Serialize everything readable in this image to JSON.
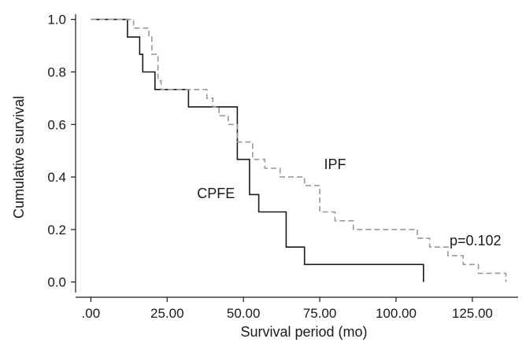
{
  "chart_data": {
    "type": "line",
    "subtype": "kaplan-meier step curves",
    "title": "",
    "xlabel": "Survival period (mo)",
    "ylabel": "Cumulative survival",
    "xlim": [
      -5,
      140
    ],
    "ylim": [
      -0.04,
      1.02
    ],
    "x_ticks": [
      0,
      25,
      50,
      75,
      100,
      125
    ],
    "x_tick_labels": [
      ".00",
      "25.00",
      "50.00",
      "75.00",
      "100.00",
      "125.00"
    ],
    "y_ticks": [
      0,
      0.2,
      0.4,
      0.6,
      0.8,
      1.0
    ],
    "y_tick_labels": [
      "0.0",
      "0.2",
      "0.4",
      "0.6",
      "0.8",
      "1.0"
    ],
    "grid": false,
    "legend": "none",
    "series": [
      {
        "name": "CPFE",
        "style": "solid",
        "color": "#1a1a1a",
        "points": [
          [
            0,
            1.0
          ],
          [
            12,
            1.0
          ],
          [
            12,
            0.933
          ],
          [
            16,
            0.933
          ],
          [
            16,
            0.867
          ],
          [
            17,
            0.867
          ],
          [
            17,
            0.8
          ],
          [
            21,
            0.8
          ],
          [
            21,
            0.733
          ],
          [
            32,
            0.733
          ],
          [
            32,
            0.667
          ],
          [
            48,
            0.667
          ],
          [
            48,
            0.467
          ],
          [
            52,
            0.467
          ],
          [
            52,
            0.333
          ],
          [
            55,
            0.333
          ],
          [
            55,
            0.267
          ],
          [
            64,
            0.267
          ],
          [
            64,
            0.133
          ],
          [
            70,
            0.133
          ],
          [
            70,
            0.067
          ],
          [
            109,
            0.067
          ],
          [
            109,
            0.0
          ]
        ]
      },
      {
        "name": "IPF",
        "style": "dashed",
        "color": "#999999",
        "points": [
          [
            0,
            1.0
          ],
          [
            14,
            1.0
          ],
          [
            14,
            0.967
          ],
          [
            19,
            0.967
          ],
          [
            19,
            0.933
          ],
          [
            20,
            0.933
          ],
          [
            20,
            0.867
          ],
          [
            22,
            0.867
          ],
          [
            22,
            0.767
          ],
          [
            23,
            0.767
          ],
          [
            23,
            0.733
          ],
          [
            38,
            0.733
          ],
          [
            38,
            0.7
          ],
          [
            40,
            0.7
          ],
          [
            40,
            0.667
          ],
          [
            42,
            0.667
          ],
          [
            42,
            0.633
          ],
          [
            45,
            0.633
          ],
          [
            45,
            0.6
          ],
          [
            48,
            0.6
          ],
          [
            48,
            0.533
          ],
          [
            53,
            0.533
          ],
          [
            53,
            0.467
          ],
          [
            57,
            0.467
          ],
          [
            57,
            0.433
          ],
          [
            62,
            0.433
          ],
          [
            62,
            0.4
          ],
          [
            70,
            0.4
          ],
          [
            70,
            0.367
          ],
          [
            75,
            0.367
          ],
          [
            75,
            0.267
          ],
          [
            80,
            0.267
          ],
          [
            80,
            0.233
          ],
          [
            86,
            0.233
          ],
          [
            86,
            0.2
          ],
          [
            107,
            0.2
          ],
          [
            107,
            0.167
          ],
          [
            111,
            0.167
          ],
          [
            111,
            0.133
          ],
          [
            117,
            0.133
          ],
          [
            117,
            0.1
          ],
          [
            122,
            0.1
          ],
          [
            122,
            0.067
          ],
          [
            127,
            0.067
          ],
          [
            127,
            0.033
          ],
          [
            136,
            0.033
          ],
          [
            136,
            0.0
          ]
        ]
      }
    ],
    "annotations": [
      {
        "text": "IPF",
        "x": 80,
        "y": 0.43
      },
      {
        "text": "CPFE",
        "x": 41,
        "y": 0.32
      },
      {
        "text": "p=0.102",
        "x": 126,
        "y": 0.14
      }
    ]
  }
}
